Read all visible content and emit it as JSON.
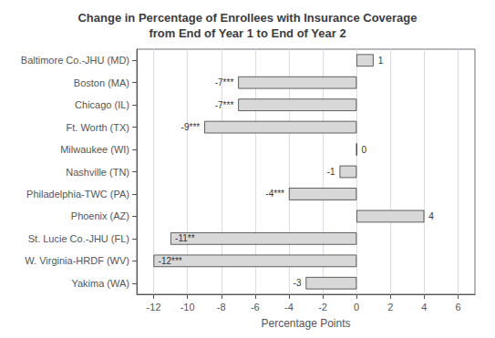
{
  "chart_data": {
    "type": "bar",
    "orientation": "horizontal",
    "title": "Change in Percentage of Enrollees with Insurance Coverage\nfrom End of Year 1 to End of Year 2",
    "xlabel": "Percentage Points",
    "categories": [
      "Baltimore Co.-JHU (MD)",
      "Boston (MA)",
      "Chicago (IL)",
      "Ft. Worth (TX)",
      "Milwaukee (WI)",
      "Nashville (TN)",
      "Philadelphia-TWC (PA)",
      "Phoenix (AZ)",
      "St. Lucie Co.-JHU (FL)",
      "W. Virginia-HRDF (WV)",
      "Yakima (WA)"
    ],
    "values": [
      1,
      -7,
      -7,
      -9,
      0,
      -1,
      -4,
      4,
      -11,
      -12,
      -3
    ],
    "value_labels": [
      "1",
      "-7***",
      "-7***",
      "-9***",
      "0",
      "-1",
      "-4***",
      "4",
      "-11**",
      "-12***",
      "-3"
    ],
    "data_labels": true,
    "color": "#d8d8d8",
    "xlim": [
      -13,
      7
    ],
    "xticks": [
      -12,
      -10,
      -8,
      -6,
      -4,
      -2,
      0,
      2,
      4,
      6
    ],
    "grid": true
  }
}
